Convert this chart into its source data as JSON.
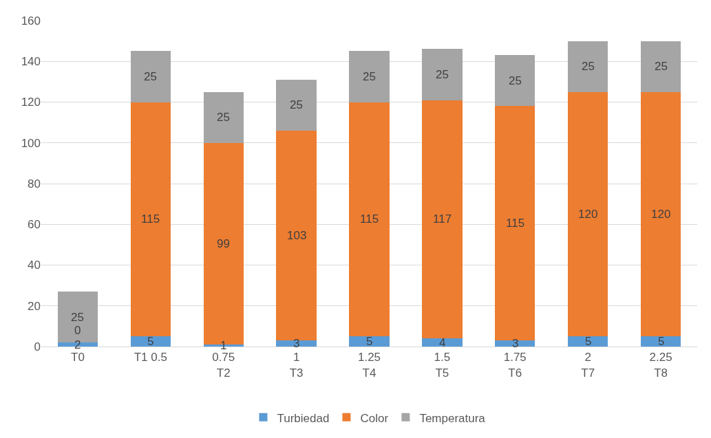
{
  "chart_data": {
    "type": "bar",
    "stacked": true,
    "categories": [
      "T0",
      "T1 0.5",
      "0.75\nT2",
      "1\nT3",
      "1.25\nT4",
      "1.5\nT5",
      "1.75\nT6",
      "2\nT7",
      "2.25\nT8"
    ],
    "series": [
      {
        "name": "Turbiedad",
        "color": "#5b9bd5",
        "values": [
          2,
          5,
          1,
          3,
          5,
          4,
          3,
          5,
          5
        ]
      },
      {
        "name": "Color",
        "color": "#ed7d31",
        "values": [
          0,
          115,
          99,
          103,
          115,
          117,
          115,
          120,
          120
        ]
      },
      {
        "name": "Temperatura",
        "color": "#a5a5a5",
        "values": [
          25,
          25,
          25,
          25,
          25,
          25,
          25,
          25,
          25
        ]
      }
    ],
    "ylim": [
      0,
      160
    ],
    "yticks": [
      0,
      20,
      40,
      60,
      80,
      100,
      120,
      140,
      160
    ],
    "grid": "y",
    "legend": "bottom",
    "data_labels": true
  }
}
